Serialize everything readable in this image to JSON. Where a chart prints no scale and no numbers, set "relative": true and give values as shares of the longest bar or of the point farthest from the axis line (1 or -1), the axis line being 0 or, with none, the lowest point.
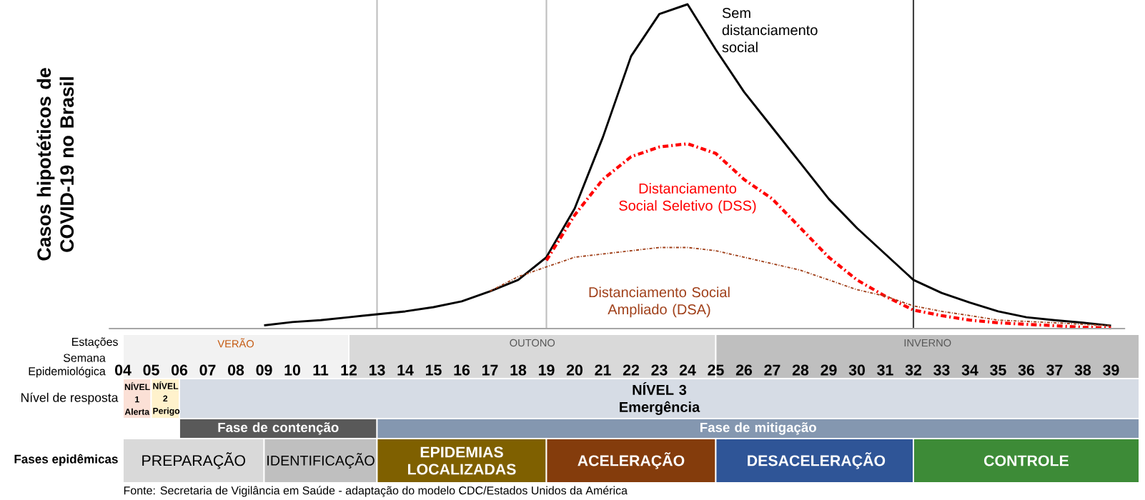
{
  "chart_data": [
    {
      "type": "line",
      "relative": true,
      "ylabel": "Casos hipotéticos de COVID-19 no Brasil",
      "xlabel": "Semana Epidemiológica",
      "categories": [
        "04",
        "05",
        "06",
        "07",
        "08",
        "09",
        "10",
        "11",
        "12",
        "13",
        "14",
        "15",
        "16",
        "17",
        "18",
        "19",
        "20",
        "21",
        "22",
        "23",
        "24",
        "25",
        "26",
        "27",
        "28",
        "29",
        "30",
        "31",
        "32",
        "33",
        "34",
        "35",
        "36",
        "37",
        "38",
        "39"
      ],
      "series": [
        {
          "name": "Sem distanciamento social",
          "color": "#000000",
          "line_style": "solid",
          "values": [
            null,
            null,
            null,
            null,
            null,
            0.01,
            0.02,
            0.026,
            0.035,
            0.044,
            0.053,
            0.066,
            0.084,
            0.115,
            0.15,
            0.22,
            0.37,
            0.59,
            0.84,
            0.97,
            1.0,
            0.86,
            0.73,
            0.62,
            0.51,
            0.4,
            0.31,
            0.23,
            0.15,
            0.11,
            0.08,
            0.053,
            0.035,
            0.026,
            0.018,
            0.009
          ]
        },
        {
          "name": "Distanciamento Social Seletivo (DSS)",
          "color": "#ff0000",
          "line_style": "dashed",
          "values": [
            null,
            null,
            null,
            null,
            null,
            null,
            null,
            null,
            null,
            null,
            null,
            null,
            null,
            null,
            null,
            0.21,
            0.35,
            0.46,
            0.53,
            0.56,
            0.57,
            0.54,
            0.46,
            0.4,
            0.31,
            0.22,
            0.15,
            0.1,
            0.057,
            0.04,
            0.026,
            0.018,
            0.013,
            0.009,
            0.004,
            0.002
          ]
        },
        {
          "name": "Distanciamento Social Ampliado (DSA)",
          "color": "#a0401a",
          "line_style": "dotted",
          "values": [
            null,
            null,
            null,
            null,
            null,
            null,
            null,
            null,
            null,
            null,
            null,
            null,
            null,
            0.115,
            0.16,
            0.19,
            0.22,
            0.23,
            0.24,
            0.25,
            0.25,
            0.24,
            0.22,
            0.2,
            0.18,
            0.15,
            0.12,
            0.1,
            0.07,
            0.053,
            0.04,
            0.026,
            0.022,
            0.018,
            0.013,
            0.009
          ]
        }
      ],
      "ref_lines": [
        {
          "axis": "x",
          "value": "13",
          "color": "#bfbfbf"
        },
        {
          "axis": "x",
          "value": "19",
          "color": "#bfbfbf"
        },
        {
          "axis": "x",
          "value": "32",
          "color": "#404040"
        }
      ]
    },
    {
      "type": "other",
      "annotations": [
        "Estações",
        "VERÃO",
        "OUTONO",
        "INVERNO",
        "Nível de resposta",
        "NÍVEL 1 Alerta",
        "NÍVEL 2 Perigo",
        "NÍVEL 3 Emergência",
        "Fase de contenção",
        "Fase de mitigação",
        "Fases epidêmicas",
        "PREPARAÇÃO",
        "IDENTIFICAÇÃO",
        "EPIDEMIAS LOCALIZADAS",
        "ACELERAÇÃO",
        "DESACELERAÇÃO",
        "CONTROLE",
        "Fonte: Secretaria de Vigilância em Saúde - adaptação do modelo CDC/Estados Unidos da América"
      ]
    }
  ]
}
